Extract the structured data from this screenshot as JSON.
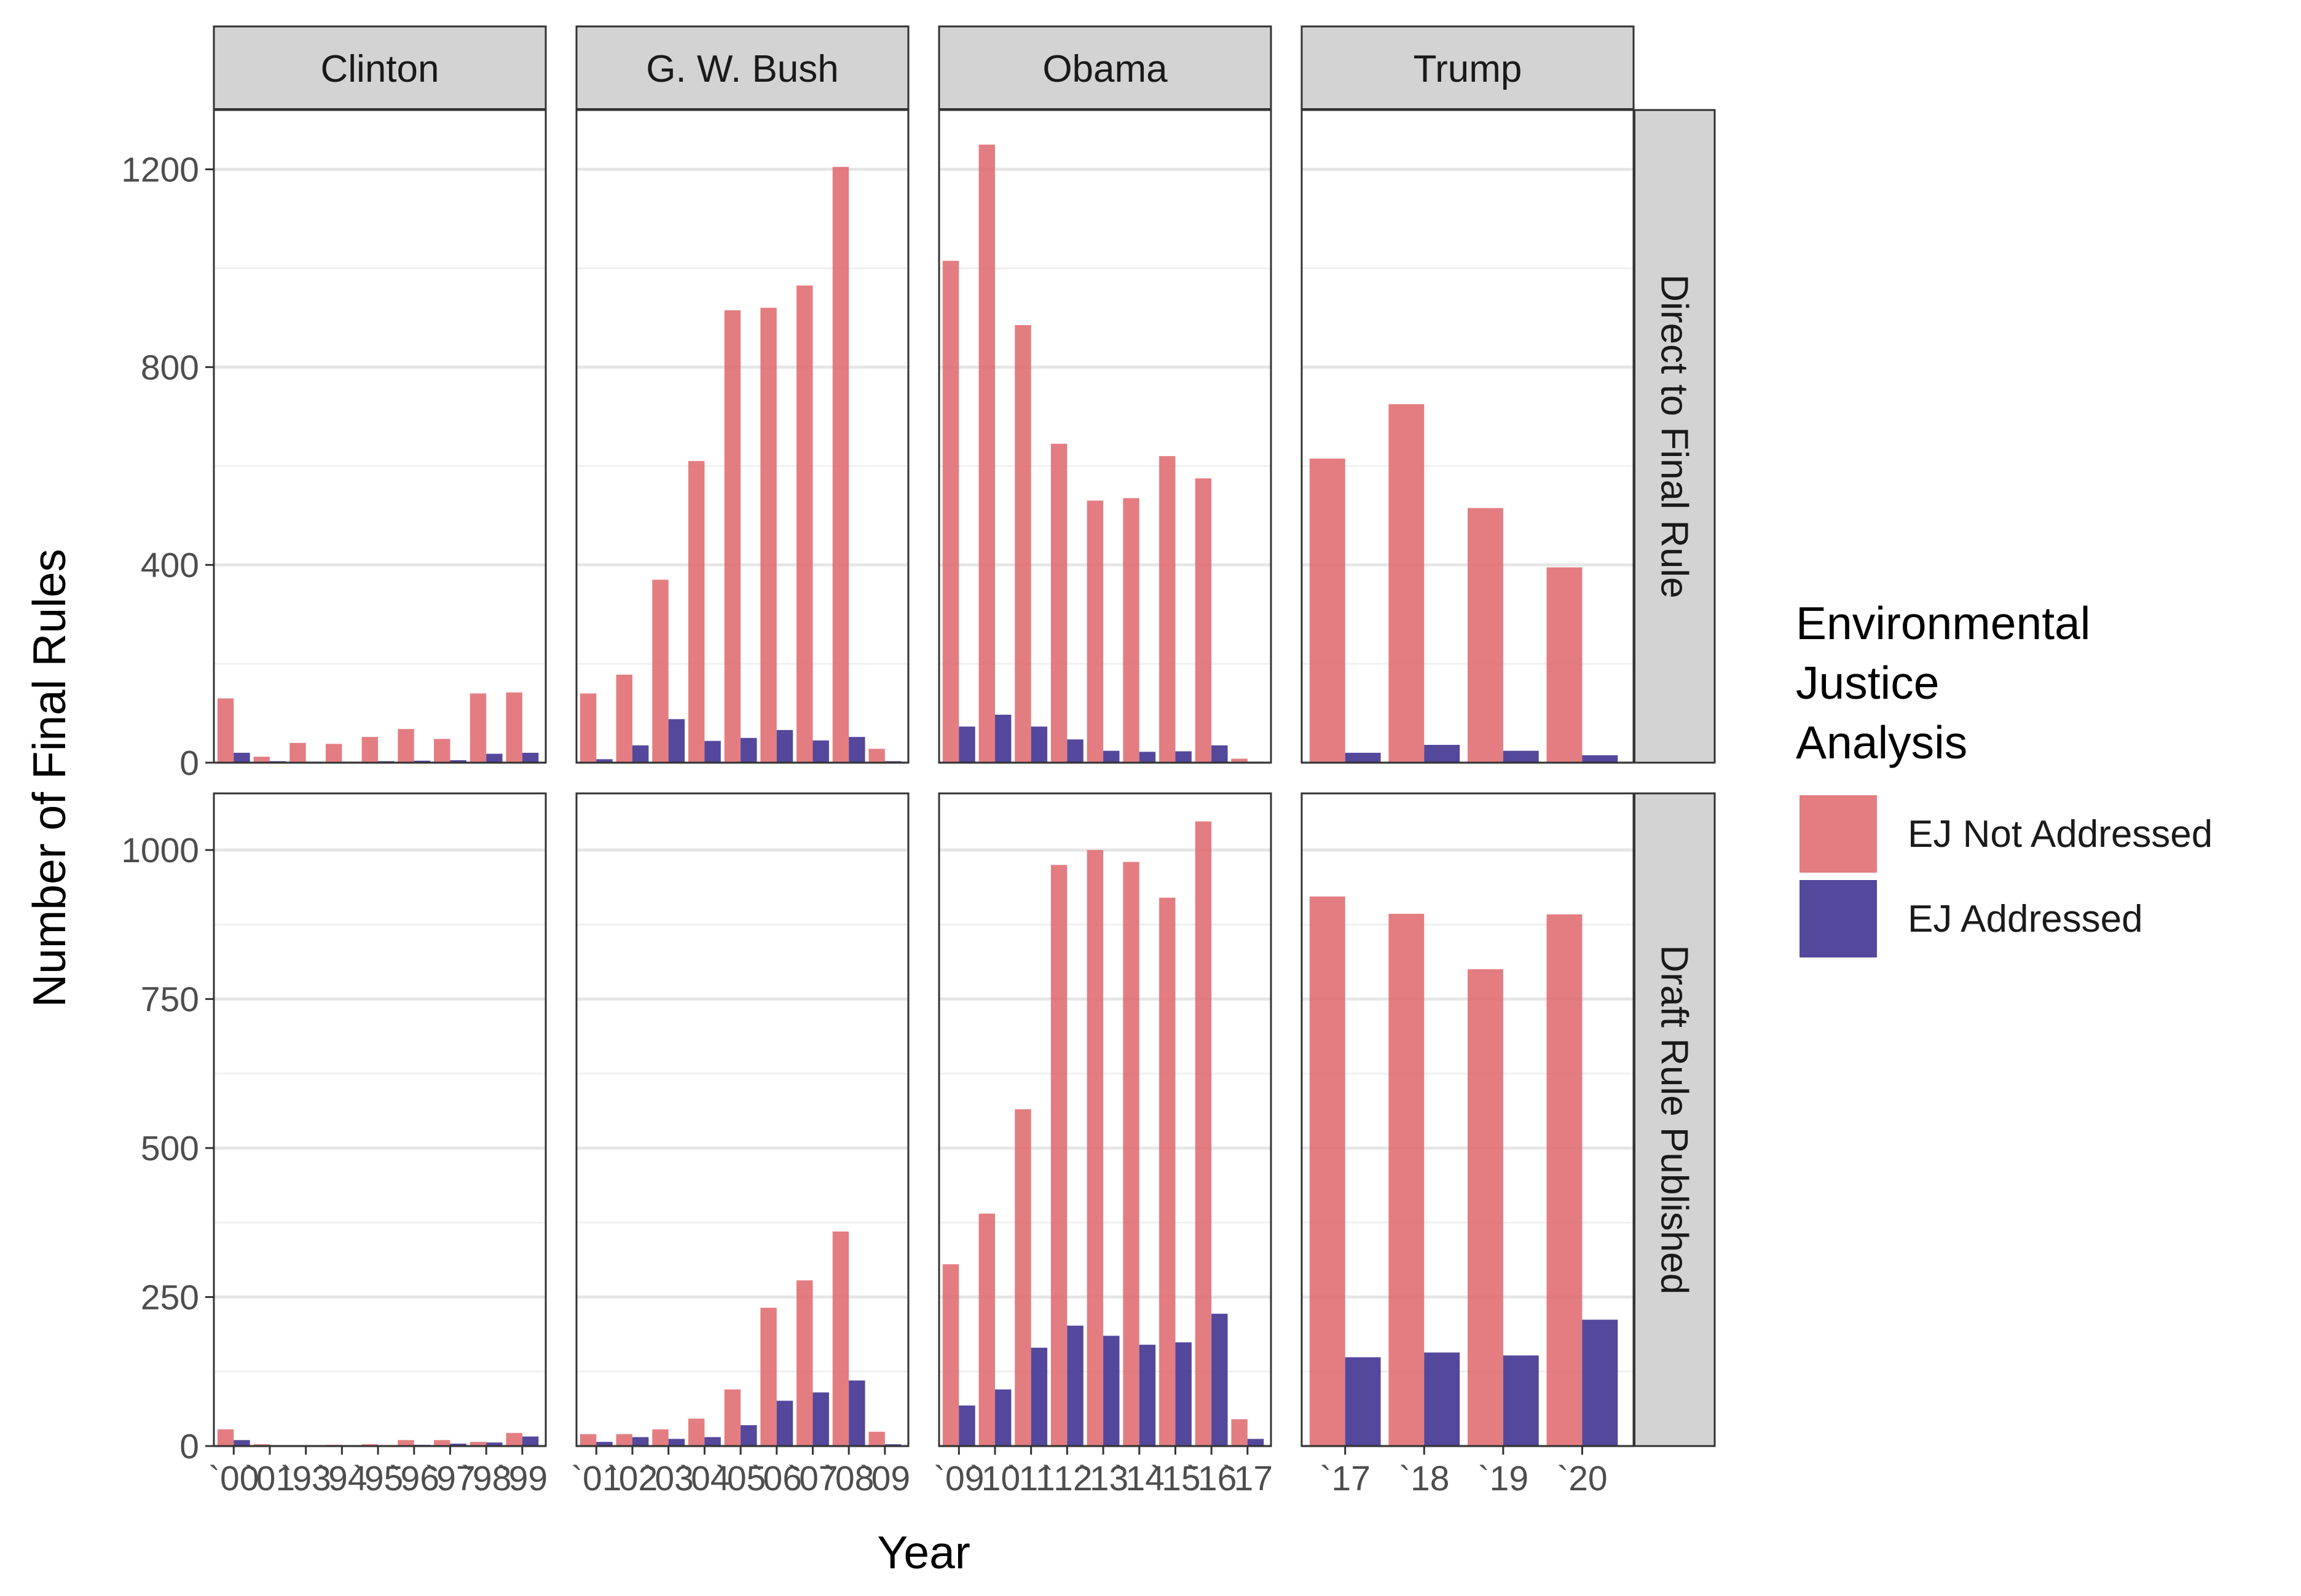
{
  "chart_data": {
    "type": "bar",
    "facet_columns": [
      "Clinton",
      "G. W. Bush",
      "Obama",
      "Trump"
    ],
    "facet_rows": [
      "Direct to Final Rule",
      "Draft Rule Published"
    ],
    "xlabel": "Year",
    "ylabel": "Number of Final Rules",
    "legend": {
      "title_lines": [
        "Environmental",
        "Justice",
        "Analysis"
      ],
      "placement": "right",
      "items": [
        {
          "label": "EJ Not Addressed",
          "color": "#df6b6f"
        },
        {
          "label": "EJ Addressed",
          "color": "#3c2f8e"
        }
      ]
    },
    "x_tick_labels": {
      "Clinton": [
        "`00",
        "`01",
        "`93",
        "`94",
        "`95",
        "`96",
        "`97",
        "`98",
        "`99"
      ],
      "G. W. Bush": [
        "`01",
        "`02",
        "`03",
        "`04",
        "`05",
        "`06",
        "`07",
        "`08",
        "`09"
      ],
      "Obama": [
        "`09",
        "`10",
        "`11",
        "`12",
        "`13",
        "`14",
        "`15",
        "`16",
        "`17"
      ],
      "Trump": [
        "`17",
        "`18",
        "`19",
        "`20"
      ]
    },
    "rows": [
      {
        "label": "Direct to Final Rule",
        "ylim": [
          0,
          1320
        ],
        "yticks": [
          0,
          400,
          800,
          1200
        ],
        "ytick_labels": [
          "0",
          "400",
          "800",
          "1200"
        ],
        "panels": [
          {
            "president": "Clinton",
            "not_addressed": [
              130,
              12,
              40,
              38,
              52,
              68,
              48,
              140,
              142
            ],
            "addressed": [
              20,
              3,
              2,
              2,
              3,
              4,
              5,
              18,
              20
            ]
          },
          {
            "president": "G. W. Bush",
            "not_addressed": [
              140,
              178,
              370,
              610,
              915,
              920,
              965,
              1205,
              28
            ],
            "addressed": [
              7,
              35,
              88,
              44,
              50,
              66,
              45,
              52,
              3
            ]
          },
          {
            "president": "Obama",
            "not_addressed": [
              1015,
              1250,
              885,
              645,
              530,
              535,
              620,
              575,
              8
            ],
            "addressed": [
              73,
              97,
              73,
              47,
              24,
              22,
              23,
              35,
              2
            ]
          },
          {
            "president": "Trump",
            "not_addressed": [
              615,
              725,
              515,
              395
            ],
            "addressed": [
              20,
              36,
              24,
              15
            ]
          }
        ]
      },
      {
        "label": "Draft Rule Published",
        "ylim": [
          0,
          1095
        ],
        "yticks": [
          0,
          250,
          500,
          750,
          1000
        ],
        "ytick_labels": [
          "0",
          "250",
          "500",
          "750",
          "1000"
        ],
        "panels": [
          {
            "president": "Clinton",
            "not_addressed": [
              28,
              3,
              1,
              2,
              3,
              10,
              10,
              7,
              22
            ],
            "addressed": [
              10,
              1,
              1,
              1,
              1,
              2,
              4,
              6,
              16
            ]
          },
          {
            "president": "G. W. Bush",
            "not_addressed": [
              20,
              20,
              28,
              46,
              95,
              232,
              278,
              360,
              24
            ],
            "addressed": [
              7,
              15,
              12,
              15,
              35,
              76,
              90,
              110,
              3
            ]
          },
          {
            "president": "Obama",
            "not_addressed": [
              305,
              390,
              565,
              975,
              1000,
              980,
              920,
              1048,
              45
            ],
            "addressed": [
              68,
              95,
              165,
              202,
              185,
              170,
              174,
              222,
              12
            ]
          },
          {
            "president": "Trump",
            "not_addressed": [
              922,
              893,
              800,
              892
            ],
            "addressed": [
              149,
              157,
              152,
              212
            ]
          }
        ]
      }
    ]
  }
}
